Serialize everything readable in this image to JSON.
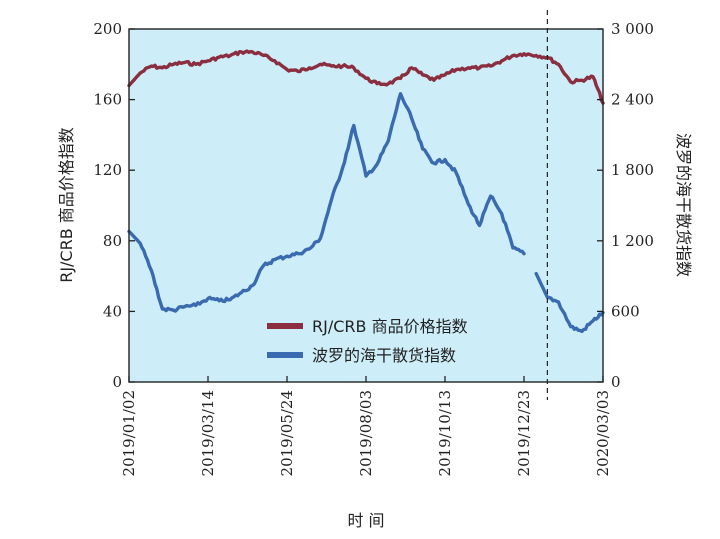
{
  "chart_data": {
    "type": "line",
    "xlabel": "时 间",
    "ylabel_left": "RJ/CRB 商品价格指数",
    "ylabel_right": "波罗的海干散货指数",
    "ylim_left": [
      0,
      200
    ],
    "ylim_right": [
      0,
      3000
    ],
    "yticks_left": [
      "0",
      "40",
      "80",
      "120",
      "160",
      "200"
    ],
    "yticks_right": [
      "0",
      "600",
      "1 200",
      "1 800",
      "2 400",
      "3 000"
    ],
    "xticks": [
      "2019/01/02",
      "2019/03/14",
      "2019/05/24",
      "2019/08/03",
      "2019/10/13",
      "2019/12/23",
      "2020/03/03"
    ],
    "legend_position": "bottom-center",
    "grid": false,
    "background_color": "#cdeef9",
    "vline_at": "2020/01/13",
    "vline_style": "dashed",
    "series": [
      {
        "name": "RJ/CRB 商品价格指数",
        "axis": "left",
        "color": "#8b2e3f",
        "points": [
          [
            "2019/01/02",
            168
          ],
          [
            "2019/01/12",
            175
          ],
          [
            "2019/01/22",
            179
          ],
          [
            "2019/02/01",
            178
          ],
          [
            "2019/02/11",
            180
          ],
          [
            "2019/02/21",
            181
          ],
          [
            "2019/03/03",
            180
          ],
          [
            "2019/03/14",
            182
          ],
          [
            "2019/03/24",
            184
          ],
          [
            "2019/04/03",
            185
          ],
          [
            "2019/04/13",
            187
          ],
          [
            "2019/04/23",
            187
          ],
          [
            "2019/05/03",
            185
          ],
          [
            "2019/05/13",
            182
          ],
          [
            "2019/05/24",
            177
          ],
          [
            "2019/06/03",
            176
          ],
          [
            "2019/06/13",
            178
          ],
          [
            "2019/06/23",
            180
          ],
          [
            "2019/07/03",
            179
          ],
          [
            "2019/07/13",
            179
          ],
          [
            "2019/07/23",
            178
          ],
          [
            "2019/08/03",
            172
          ],
          [
            "2019/08/13",
            169
          ],
          [
            "2019/08/23",
            169
          ],
          [
            "2019/09/03",
            172
          ],
          [
            "2019/09/13",
            178
          ],
          [
            "2019/09/23",
            174
          ],
          [
            "2019/10/03",
            171
          ],
          [
            "2019/10/13",
            174
          ],
          [
            "2019/10/23",
            177
          ],
          [
            "2019/11/03",
            178
          ],
          [
            "2019/11/13",
            178
          ],
          [
            "2019/11/23",
            179
          ],
          [
            "2019/12/03",
            182
          ],
          [
            "2019/12/13",
            185
          ],
          [
            "2019/12/23",
            186
          ],
          [
            "2020/01/03",
            185
          ],
          [
            "2020/01/13",
            184
          ],
          [
            "2020/01/23",
            180
          ],
          [
            "2020/02/03",
            170
          ],
          [
            "2020/02/13",
            171
          ],
          [
            "2020/02/23",
            173
          ],
          [
            "2020/03/03",
            158
          ]
        ]
      },
      {
        "name": "波罗的海干散货指数",
        "axis": "right",
        "color": "#3a6bb0",
        "points": [
          [
            "2019/01/02",
            1280
          ],
          [
            "2019/01/12",
            1180
          ],
          [
            "2019/01/22",
            950
          ],
          [
            "2019/02/01",
            620
          ],
          [
            "2019/02/11",
            610
          ],
          [
            "2019/02/21",
            640
          ],
          [
            "2019/03/03",
            650
          ],
          [
            "2019/03/14",
            710
          ],
          [
            "2019/03/24",
            690
          ],
          [
            "2019/04/03",
            700
          ],
          [
            "2019/04/13",
            760
          ],
          [
            "2019/04/23",
            820
          ],
          [
            "2019/05/03",
            990
          ],
          [
            "2019/05/13",
            1040
          ],
          [
            "2019/05/24",
            1070
          ],
          [
            "2019/06/03",
            1090
          ],
          [
            "2019/06/13",
            1130
          ],
          [
            "2019/06/23",
            1220
          ],
          [
            "2019/07/03",
            1550
          ],
          [
            "2019/07/13",
            1820
          ],
          [
            "2019/07/23",
            2180
          ],
          [
            "2019/08/03",
            1750
          ],
          [
            "2019/08/13",
            1850
          ],
          [
            "2019/08/23",
            2050
          ],
          [
            "2019/09/03",
            2450
          ],
          [
            "2019/09/13",
            2240
          ],
          [
            "2019/09/23",
            1980
          ],
          [
            "2019/10/03",
            1860
          ],
          [
            "2019/10/13",
            1890
          ],
          [
            "2019/10/23",
            1780
          ],
          [
            "2019/11/03",
            1510
          ],
          [
            "2019/11/13",
            1330
          ],
          [
            "2019/11/23",
            1580
          ],
          [
            "2019/12/03",
            1430
          ],
          [
            "2019/12/13",
            1140
          ],
          [
            "2019/12/23",
            1090
          ],
          null,
          [
            "2020/01/03",
            920
          ],
          [
            "2020/01/13",
            720
          ],
          [
            "2020/01/23",
            680
          ],
          [
            "2020/02/03",
            470
          ],
          [
            "2020/02/13",
            430
          ],
          [
            "2020/02/23",
            520
          ],
          [
            "2020/03/03",
            590
          ]
        ]
      }
    ]
  }
}
